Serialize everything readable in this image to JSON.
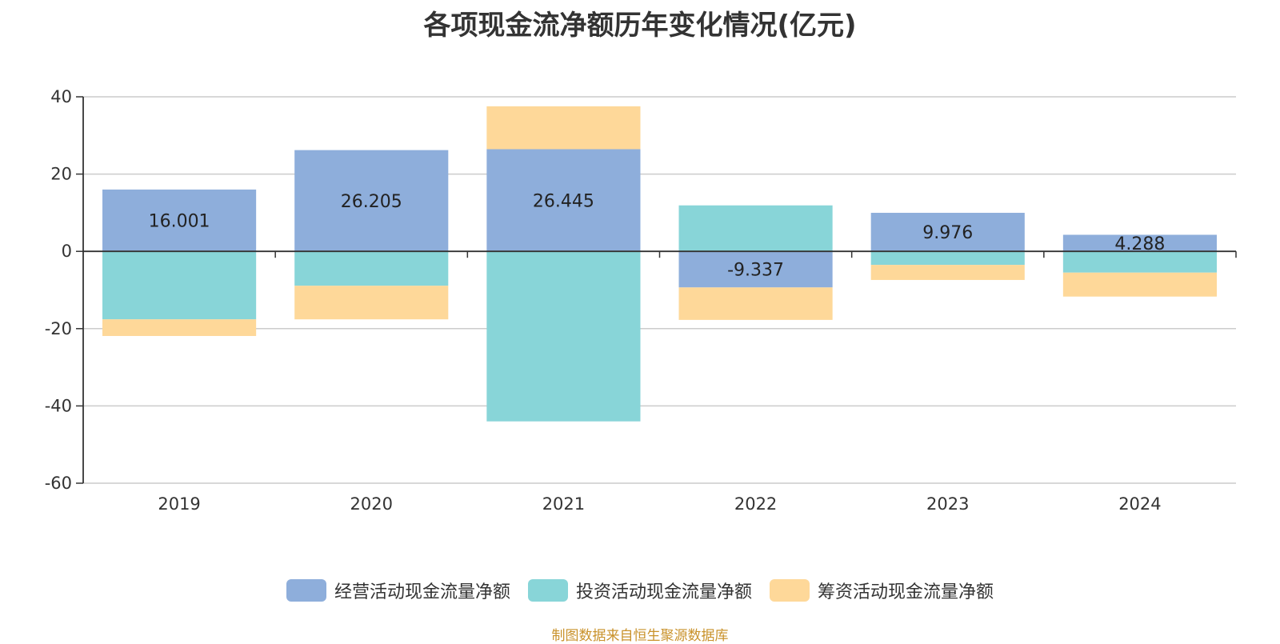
{
  "title": "各项现金流净额历年变化情况(亿元)",
  "source_note": "制图数据来自恒生聚源数据库",
  "chart_data": {
    "type": "bar",
    "stacked": true,
    "title": "各项现金流净额历年变化情况(亿元)",
    "categories": [
      "2019",
      "2020",
      "2021",
      "2022",
      "2023",
      "2024"
    ],
    "ylim": [
      -60,
      40
    ],
    "yticks": [
      40,
      20,
      0,
      -20,
      -40,
      -60
    ],
    "grid": true,
    "legend_position": "bottom",
    "series": [
      {
        "name": "经营活动现金流量净额",
        "color": "#8eaedb",
        "values": [
          16.001,
          26.205,
          26.445,
          -9.337,
          9.976,
          4.288
        ],
        "labels": [
          "16.001",
          "26.205",
          "26.445",
          "-9.337",
          "9.976",
          "4.288"
        ]
      },
      {
        "name": "投资活动现金流量净额",
        "color": "#88d5d8",
        "values": [
          -17.6,
          -8.9,
          -44.0,
          11.9,
          -3.5,
          -5.5
        ]
      },
      {
        "name": "筹资活动现金流量净额",
        "color": "#fed899",
        "values": [
          -4.3,
          -8.7,
          11.1,
          -8.4,
          -3.9,
          -6.2
        ]
      }
    ]
  }
}
